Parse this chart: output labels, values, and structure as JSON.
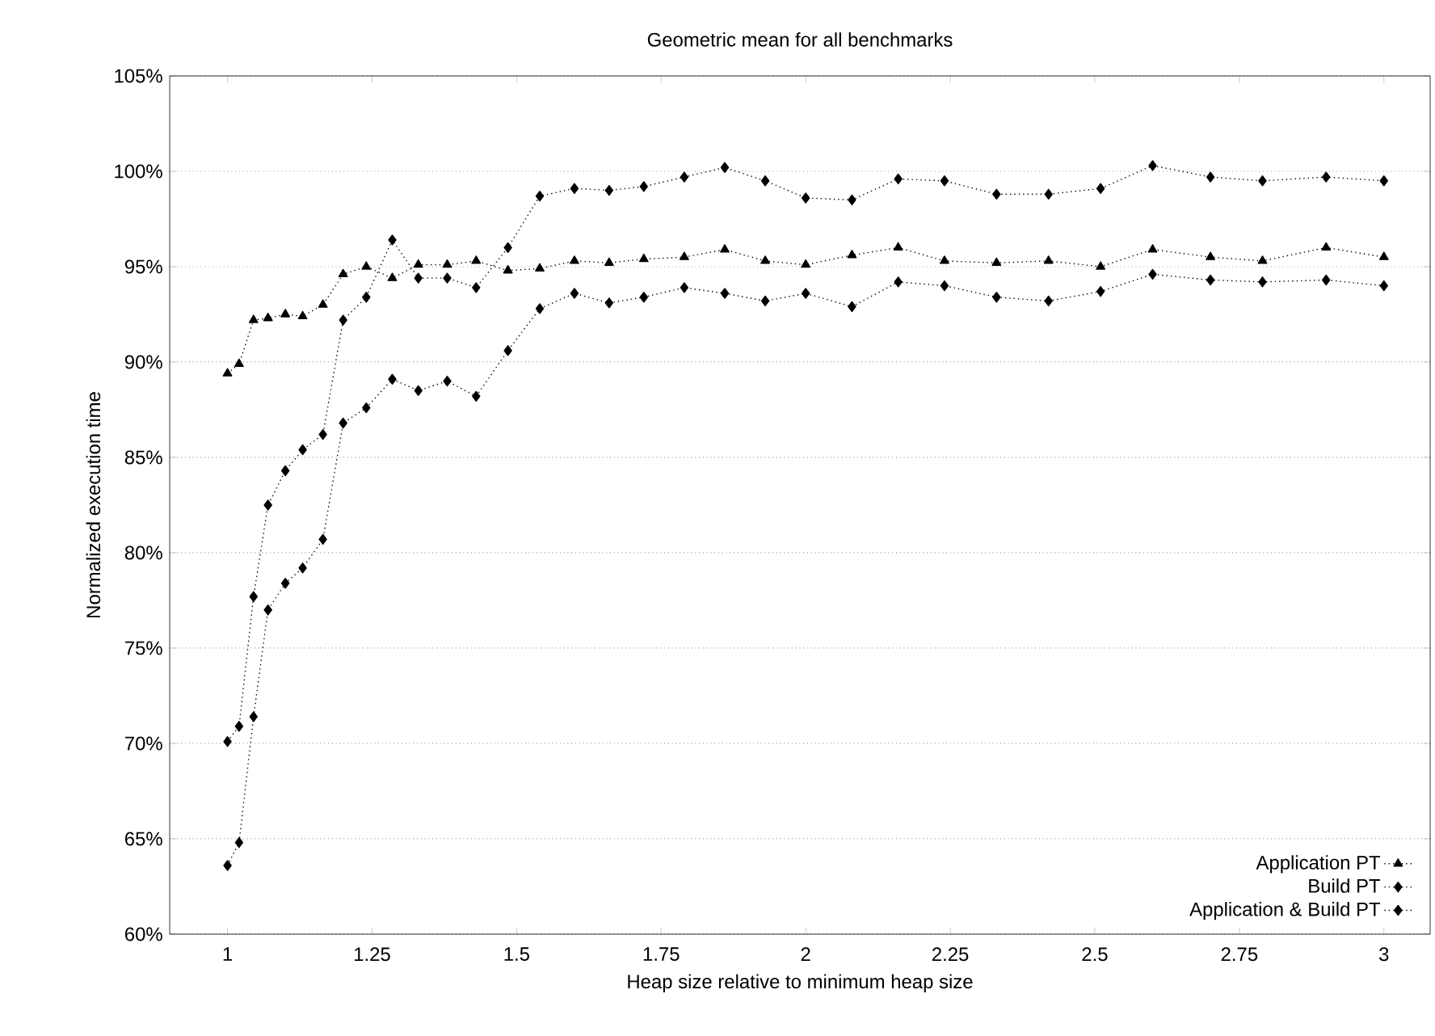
{
  "chart_data": {
    "type": "line",
    "title": "Geometric mean for all benchmarks",
    "xlabel": "Heap size relative to minimum heap size",
    "ylabel": "Normalized execution time",
    "x": [
      1,
      1.02,
      1.045,
      1.07,
      1.1,
      1.13,
      1.165,
      1.2,
      1.24,
      1.285,
      1.33,
      1.38,
      1.43,
      1.485,
      1.54,
      1.6,
      1.66,
      1.72,
      1.79,
      1.86,
      1.93,
      2.0,
      2.08,
      2.16,
      2.24,
      2.33,
      2.42,
      2.51,
      2.6,
      2.7,
      2.79,
      2.9,
      3.0
    ],
    "series": [
      {
        "name": "Application PT",
        "color": "#000000",
        "marker": "triangle",
        "values": [
          89.4,
          89.9,
          92.2,
          92.3,
          92.5,
          92.4,
          93.0,
          94.6,
          95.0,
          94.4,
          95.1,
          95.1,
          95.3,
          94.8,
          94.9,
          95.3,
          95.2,
          95.4,
          95.5,
          95.9,
          95.3,
          95.1,
          95.6,
          96.0,
          95.3,
          95.2,
          95.3,
          95.0,
          95.9,
          95.5,
          95.3,
          96.0,
          95.5
        ]
      },
      {
        "name": "Build PT",
        "color": "#000000",
        "marker": "diamond",
        "values": [
          70.1,
          70.9,
          77.7,
          82.5,
          84.3,
          85.4,
          86.2,
          92.2,
          93.4,
          96.4,
          94.4,
          94.4,
          93.9,
          96.0,
          98.7,
          99.1,
          99.0,
          99.2,
          99.7,
          100.2,
          99.5,
          98.6,
          98.5,
          99.6,
          99.5,
          98.8,
          98.8,
          99.1,
          100.3,
          99.7,
          99.5,
          99.7,
          99.5
        ]
      },
      {
        "name": "Application & Build PT",
        "color": "#000000",
        "marker": "diamond",
        "values": [
          63.6,
          64.8,
          71.4,
          77.0,
          78.4,
          79.2,
          80.7,
          86.8,
          87.6,
          89.1,
          88.5,
          89.0,
          88.2,
          90.6,
          92.8,
          93.6,
          93.1,
          93.4,
          93.9,
          93.6,
          93.2,
          93.6,
          92.9,
          94.2,
          94.0,
          93.4,
          93.2,
          93.7,
          94.6,
          94.3,
          94.2,
          94.3,
          94.0
        ]
      }
    ],
    "xlim": [
      0.9,
      3.08
    ],
    "ylim": [
      60,
      105
    ],
    "xticks": [
      1,
      1.25,
      1.5,
      1.75,
      2,
      2.25,
      2.5,
      2.75,
      3
    ],
    "yticks": [
      {
        "value": 60,
        "label": "60%"
      },
      {
        "value": 65,
        "label": "65%"
      },
      {
        "value": 70,
        "label": "70%"
      },
      {
        "value": 75,
        "label": "75%"
      },
      {
        "value": 80,
        "label": "80%"
      },
      {
        "value": 85,
        "label": "85%"
      },
      {
        "value": 90,
        "label": "90%"
      },
      {
        "value": 95,
        "label": "95%"
      },
      {
        "value": 100,
        "label": "100%"
      },
      {
        "value": 105,
        "label": "105%"
      }
    ],
    "grid": "y",
    "legend": "bottom right",
    "line_style": "dotted"
  }
}
